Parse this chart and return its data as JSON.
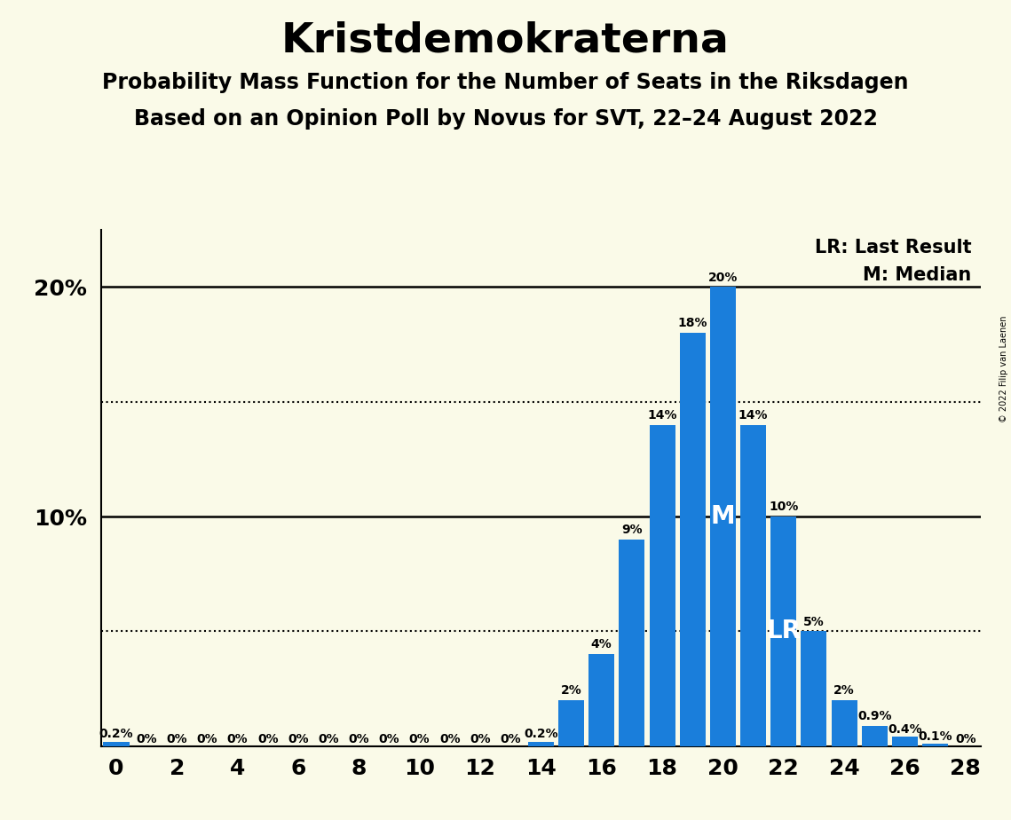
{
  "title": "Kristdemokraterna",
  "subtitle1": "Probability Mass Function for the Number of Seats in the Riksdagen",
  "subtitle2": "Based on an Opinion Poll by Novus for SVT, 22–24 August 2022",
  "copyright": "© 2022 Filip van Laenen",
  "background_color": "#fafae8",
  "bar_color": "#1a7edb",
  "seats": [
    0,
    1,
    2,
    3,
    4,
    5,
    6,
    7,
    8,
    9,
    10,
    11,
    12,
    13,
    14,
    15,
    16,
    17,
    18,
    19,
    20,
    21,
    22,
    23,
    24,
    25,
    26,
    27,
    28
  ],
  "probabilities": [
    0.2,
    0.0,
    0.0,
    0.0,
    0.0,
    0.0,
    0.0,
    0.0,
    0.0,
    0.0,
    0.0,
    0.0,
    0.0,
    0.0,
    0.2,
    2.0,
    4.0,
    9.0,
    14.0,
    18.0,
    20.0,
    14.0,
    10.0,
    5.0,
    2.0,
    0.9,
    0.4,
    0.1,
    0.0
  ],
  "labels": [
    "0.2%",
    "0%",
    "0%",
    "0%",
    "0%",
    "0%",
    "0%",
    "0%",
    "0%",
    "0%",
    "0%",
    "0%",
    "0%",
    "0%",
    "0.2%",
    "2%",
    "4%",
    "9%",
    "14%",
    "18%",
    "20%",
    "14%",
    "10%",
    "5%",
    "2%",
    "0.9%",
    "0.4%",
    "0.1%",
    "0%"
  ],
  "median_seat": 20,
  "last_result_seat": 22,
  "xlim": [
    -0.5,
    28.5
  ],
  "ylim": [
    0,
    22.5
  ],
  "dotted_lines": [
    5.0,
    15.0
  ],
  "solid_lines": [
    10.0,
    20.0
  ],
  "legend_lr": "LR: Last Result",
  "legend_m": "M: Median",
  "title_fontsize": 34,
  "subtitle_fontsize": 17,
  "label_fontsize": 10,
  "axis_fontsize": 16
}
